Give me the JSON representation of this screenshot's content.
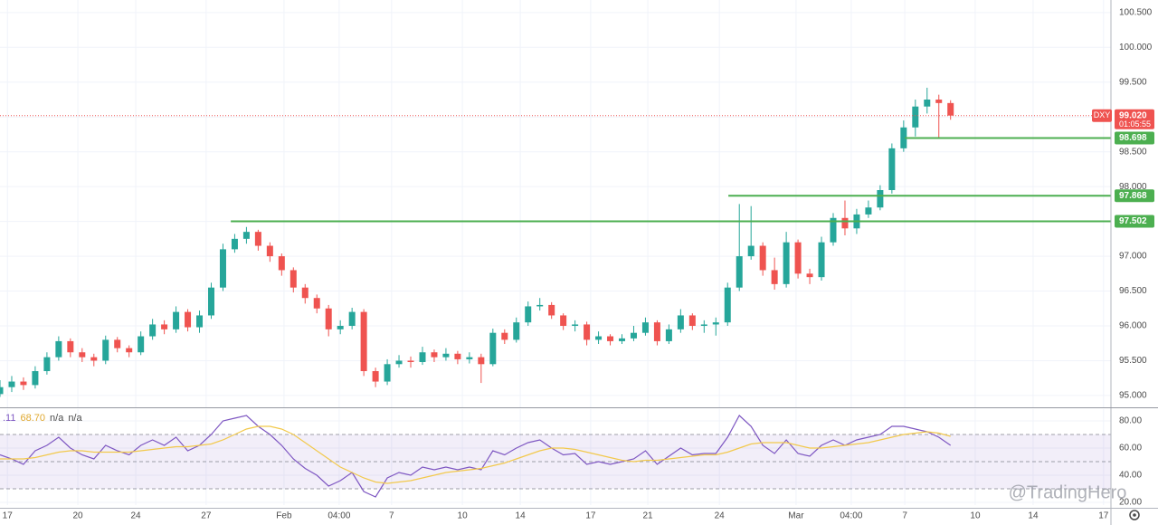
{
  "chart_data": [
    {
      "type": "candlestick",
      "x": [
        0,
        3,
        6,
        9,
        12,
        15,
        18,
        21,
        24,
        27,
        30,
        33,
        36,
        39,
        42,
        45,
        48,
        51,
        54,
        57,
        60,
        63,
        66,
        69,
        72,
        75,
        78,
        81,
        84,
        87,
        90,
        93,
        96,
        99,
        102,
        105,
        108,
        111,
        114,
        117,
        120,
        123,
        126,
        129,
        132,
        135,
        138,
        141,
        144,
        147,
        150,
        153,
        156,
        159,
        162,
        165,
        168,
        171,
        174,
        177,
        180,
        183,
        186,
        189,
        192,
        195,
        198,
        201,
        204,
        207,
        210,
        213,
        216,
        219,
        222,
        225,
        228,
        231,
        234,
        237,
        240,
        243
      ],
      "open": [
        95.02,
        95.12,
        95.2,
        95.15,
        95.35,
        95.55,
        95.78,
        95.62,
        95.55,
        95.5,
        95.8,
        95.68,
        95.62,
        95.85,
        96.02,
        95.95,
        96.2,
        95.98,
        96.15,
        96.55,
        97.1,
        97.25,
        97.35,
        97.15,
        97.0,
        96.8,
        96.55,
        96.4,
        96.25,
        95.95,
        96.0,
        96.2,
        95.35,
        95.2,
        95.45,
        95.5,
        95.48,
        95.62,
        95.55,
        95.6,
        95.52,
        95.55,
        95.45,
        95.9,
        95.8,
        96.05,
        96.28,
        96.3,
        96.15,
        96.0,
        96.02,
        95.8,
        95.85,
        95.78,
        95.82,
        95.9,
        96.05,
        95.78,
        95.95,
        96.15,
        96.0,
        96.02,
        96.05,
        96.55,
        97.0,
        97.15,
        96.8,
        96.6,
        97.2,
        96.75,
        96.7,
        97.2,
        97.55,
        97.4,
        97.6,
        97.7,
        97.95,
        98.55,
        98.85,
        99.15,
        99.25,
        99.2
      ],
      "high": [
        95.22,
        95.28,
        95.26,
        95.42,
        95.62,
        95.85,
        95.82,
        95.68,
        95.6,
        95.86,
        95.84,
        95.72,
        95.92,
        96.1,
        96.08,
        96.28,
        96.24,
        96.22,
        96.62,
        97.18,
        97.32,
        97.42,
        97.38,
        97.2,
        97.04,
        96.84,
        96.6,
        96.45,
        96.3,
        96.08,
        96.26,
        96.24,
        95.4,
        95.52,
        95.58,
        95.56,
        95.7,
        95.66,
        95.68,
        95.64,
        95.62,
        95.6,
        95.96,
        95.95,
        96.12,
        96.35,
        96.4,
        96.34,
        96.18,
        96.08,
        96.06,
        95.92,
        95.88,
        95.88,
        96.0,
        96.12,
        96.08,
        96.02,
        96.24,
        96.18,
        96.08,
        96.12,
        96.62,
        97.75,
        97.72,
        97.2,
        96.98,
        97.35,
        97.24,
        96.82,
        97.28,
        97.62,
        97.8,
        97.68,
        97.8,
        98.02,
        98.62,
        98.95,
        99.25,
        99.42,
        99.32,
        99.24
      ],
      "low": [
        94.98,
        95.05,
        95.08,
        95.1,
        95.3,
        95.5,
        95.55,
        95.48,
        95.42,
        95.45,
        95.62,
        95.55,
        95.58,
        95.8,
        95.88,
        95.9,
        95.92,
        95.9,
        96.1,
        96.5,
        97.05,
        97.18,
        97.08,
        96.92,
        96.72,
        96.48,
        96.32,
        96.18,
        95.85,
        95.88,
        95.95,
        95.28,
        95.12,
        95.15,
        95.4,
        95.4,
        95.44,
        95.48,
        95.5,
        95.45,
        95.46,
        95.18,
        95.42,
        95.74,
        95.76,
        96.0,
        96.22,
        96.1,
        95.94,
        95.92,
        95.72,
        95.74,
        95.72,
        95.74,
        95.78,
        95.86,
        95.72,
        95.74,
        95.9,
        95.94,
        95.9,
        95.86,
        96.0,
        96.5,
        96.95,
        96.72,
        96.52,
        96.55,
        96.68,
        96.6,
        96.65,
        97.15,
        97.3,
        97.32,
        97.55,
        97.66,
        97.9,
        98.5,
        98.72,
        99.05,
        98.7,
        98.96
      ],
      "close": [
        95.12,
        95.2,
        95.15,
        95.35,
        95.55,
        95.78,
        95.62,
        95.55,
        95.5,
        95.8,
        95.68,
        95.62,
        95.85,
        96.02,
        95.95,
        96.2,
        95.98,
        96.15,
        96.55,
        97.1,
        97.25,
        97.35,
        97.15,
        97.0,
        96.8,
        96.55,
        96.4,
        96.25,
        95.95,
        96.0,
        96.2,
        95.35,
        95.2,
        95.45,
        95.5,
        95.48,
        95.62,
        95.55,
        95.6,
        95.52,
        95.55,
        95.45,
        95.9,
        95.8,
        96.05,
        96.28,
        96.3,
        96.15,
        96.0,
        96.02,
        95.8,
        95.85,
        95.78,
        95.82,
        95.9,
        96.05,
        95.78,
        95.95,
        96.15,
        96.0,
        96.02,
        96.05,
        96.55,
        97.0,
        97.15,
        96.8,
        96.6,
        97.2,
        96.75,
        96.7,
        97.2,
        97.55,
        97.4,
        97.6,
        97.7,
        97.95,
        98.55,
        98.85,
        99.15,
        99.25,
        99.2,
        99.02
      ],
      "up_color": "#26a69a",
      "down_color": "#ef5350",
      "xlim": [
        0,
        284
      ],
      "xticks": [
        {
          "value": 1.9,
          "label": "17"
        },
        {
          "value": 19.9,
          "label": "20"
        },
        {
          "value": 34.7,
          "label": "24"
        },
        {
          "value": 52.7,
          "label": "27"
        },
        {
          "value": 72.6,
          "label": "Feb"
        },
        {
          "value": 86.7,
          "label": "04:00"
        },
        {
          "value": 100.1,
          "label": "7"
        },
        {
          "value": 118.2,
          "label": "10"
        },
        {
          "value": 133,
          "label": "14"
        },
        {
          "value": 151,
          "label": "17"
        },
        {
          "value": 165.6,
          "label": "21"
        },
        {
          "value": 183.9,
          "label": "24"
        },
        {
          "value": 203.5,
          "label": "Mar"
        },
        {
          "value": 217.6,
          "label": "04:00"
        },
        {
          "value": 231.3,
          "label": "7"
        },
        {
          "value": 249.3,
          "label": "10"
        },
        {
          "value": 264.1,
          "label": "14"
        },
        {
          "value": 282.1,
          "label": "17"
        }
      ],
      "ylim": [
        94.83,
        100.68
      ],
      "yticks": [
        {
          "value": 95,
          "label": "95.000"
        },
        {
          "value": 95.5,
          "label": "95.500"
        },
        {
          "value": 96,
          "label": "96.000"
        },
        {
          "value": 96.5,
          "label": "96.500"
        },
        {
          "value": 97,
          "label": "97.000"
        },
        {
          "value": 97.5,
          "label": "97.500"
        },
        {
          "value": 98,
          "label": "98.000"
        },
        {
          "value": 98.5,
          "label": "98.500"
        },
        {
          "value": 99,
          "label": "99.000"
        },
        {
          "value": 99.5,
          "label": "99.500"
        },
        {
          "value": 100,
          "label": "100.000"
        },
        {
          "value": 100.5,
          "label": "100.500"
        }
      ],
      "grid": true,
      "levels": [
        {
          "value": 97.502,
          "start": 59,
          "color": "#4caf50"
        },
        {
          "value": 97.868,
          "start": 186.2,
          "color": "#4caf50"
        },
        {
          "value": 98.698,
          "start": 231.3,
          "color": "#4caf50"
        }
      ],
      "last_price": {
        "symbol": "DXY",
        "value": 99.02,
        "label": "99.020",
        "countdown": "01:05:55",
        "color": "#ef5350"
      }
    },
    {
      "type": "line",
      "header": [
        {
          "text": ".11",
          "color": "#7e57c2"
        },
        {
          "text": "68.70",
          "color": "#e0a82e"
        },
        {
          "text": "n/a",
          "color": "#4a4a4a"
        },
        {
          "text": "n/a",
          "color": "#4a4a4a"
        }
      ],
      "series": [
        {
          "color": "#7e57c2",
          "values": [
            55,
            52,
            48,
            58,
            62,
            68,
            60,
            55,
            52,
            62,
            58,
            55,
            62,
            66,
            62,
            68,
            58,
            62,
            70,
            80,
            82,
            84,
            76,
            70,
            62,
            52,
            45,
            40,
            32,
            36,
            42,
            28,
            24,
            38,
            42,
            40,
            46,
            44,
            46,
            44,
            46,
            44,
            58,
            55,
            60,
            64,
            66,
            60,
            55,
            56,
            48,
            50,
            48,
            50,
            52,
            58,
            48,
            54,
            60,
            55,
            56,
            56,
            68,
            84,
            76,
            62,
            56,
            66,
            56,
            54,
            62,
            66,
            62,
            66,
            68,
            70,
            76,
            76,
            74,
            72,
            68,
            62
          ]
        },
        {
          "color": "#f2c94c",
          "values": [
            52,
            52,
            52,
            53,
            55,
            57,
            58,
            58,
            57,
            57,
            57,
            57,
            58,
            59,
            60,
            61,
            61,
            62,
            63,
            66,
            70,
            74,
            76,
            76,
            74,
            70,
            64,
            58,
            52,
            46,
            42,
            38,
            35,
            34,
            35,
            36,
            38,
            40,
            42,
            43,
            44,
            45,
            47,
            49,
            52,
            55,
            58,
            60,
            60,
            59,
            57,
            55,
            53,
            51,
            50,
            51,
            51,
            52,
            53,
            54,
            55,
            55,
            57,
            60,
            63,
            64,
            64,
            64,
            62,
            60,
            60,
            61,
            62,
            63,
            64,
            66,
            68,
            70,
            71,
            72,
            71,
            68.7
          ]
        }
      ],
      "ylim": [
        18,
        88.7
      ],
      "yticks": [
        {
          "value": 80,
          "label": "80.00"
        },
        {
          "value": 60,
          "label": "60.00"
        },
        {
          "value": 40,
          "label": "40.00"
        },
        {
          "value": 20,
          "label": "20.00"
        }
      ],
      "bands": {
        "lower": 30,
        "middle": 50,
        "upper": 70,
        "fill": "#7e57c2"
      }
    }
  ],
  "watermark": "@TradingHero"
}
